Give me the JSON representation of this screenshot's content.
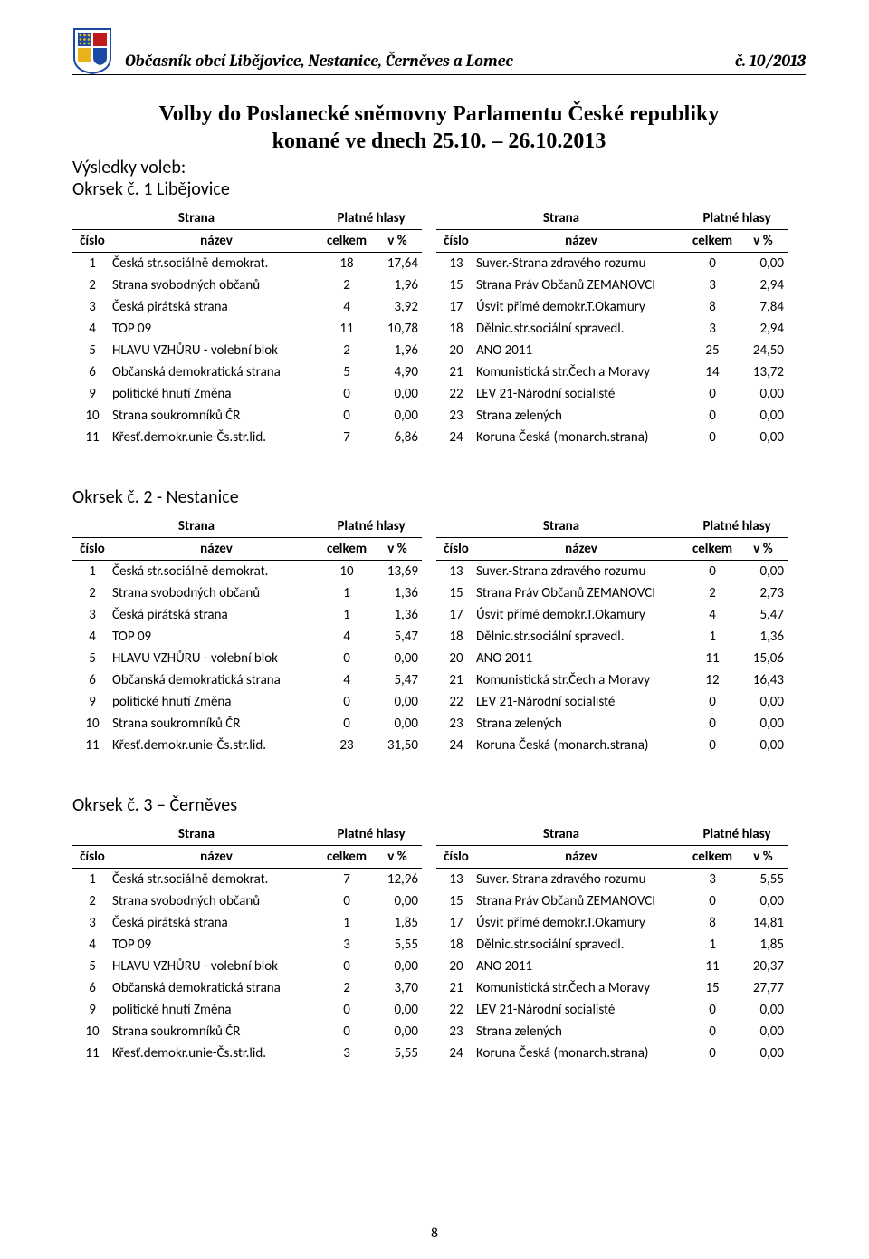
{
  "header": {
    "title": "Občasník obcí Libějovice, Nestanice, Černěves a Lomec",
    "issue": "č. 10/2013"
  },
  "main_title_line1": "Volby do Poslanecké sněmovny Parlamentu České republiky",
  "main_title_line2": "konané ve dnech 25.10. – 26.10.2013",
  "results_label": "Výsledky voleb:",
  "col": {
    "strana": "Strana",
    "hlasy": "Platné hlasy",
    "cislo": "číslo",
    "nazev": "název",
    "celkem": "celkem",
    "vpct": "v %"
  },
  "sections": [
    {
      "heading": "Okrsek č. 1 Libějovice",
      "left": [
        {
          "n": "1",
          "name": "Česká str.sociálně demokrat.",
          "c": "18",
          "p": "17,64"
        },
        {
          "n": "2",
          "name": "Strana svobodných občanů",
          "c": "2",
          "p": "1,96"
        },
        {
          "n": "3",
          "name": "Česká pirátská strana",
          "c": "4",
          "p": "3,92"
        },
        {
          "n": "4",
          "name": "TOP 09",
          "c": "11",
          "p": "10,78"
        },
        {
          "n": "5",
          "name": "HLAVU VZHŮRU - volební blok",
          "c": "2",
          "p": "1,96"
        },
        {
          "n": "6",
          "name": "Občanská demokratická strana",
          "c": "5",
          "p": "4,90"
        },
        {
          "n": "9",
          "name": "politické hnutí Změna",
          "c": "0",
          "p": "0,00"
        },
        {
          "n": "10",
          "name": "Strana soukromníků ČR",
          "c": "0",
          "p": "0,00"
        },
        {
          "n": "11",
          "name": "Křesť.demokr.unie-Čs.str.lid.",
          "c": "7",
          "p": "6,86"
        }
      ],
      "right": [
        {
          "n": "13",
          "name": "Suver.-Strana zdravého rozumu",
          "c": "0",
          "p": "0,00"
        },
        {
          "n": "15",
          "name": "Strana Práv Občanů ZEMANOVCI",
          "c": "3",
          "p": "2,94"
        },
        {
          "n": "17",
          "name": "Úsvit přímé demokr.T.Okamury",
          "c": "8",
          "p": "7,84"
        },
        {
          "n": "18",
          "name": "Dělnic.str.sociální spravedl.",
          "c": "3",
          "p": "2,94"
        },
        {
          "n": "20",
          "name": "ANO 2011",
          "c": "25",
          "p": "24,50"
        },
        {
          "n": "21",
          "name": "Komunistická str.Čech a Moravy",
          "c": "14",
          "p": "13,72"
        },
        {
          "n": "22",
          "name": "LEV 21-Národní socialisté",
          "c": "0",
          "p": "0,00"
        },
        {
          "n": "23",
          "name": "Strana zelených",
          "c": "0",
          "p": "0,00"
        },
        {
          "n": "24",
          "name": "Koruna Česká (monarch.strana)",
          "c": "0",
          "p": "0,00"
        }
      ]
    },
    {
      "heading": "Okrsek č. 2 - Nestanice",
      "left": [
        {
          "n": "1",
          "name": "Česká str.sociálně demokrat.",
          "c": "10",
          "p": "13,69"
        },
        {
          "n": "2",
          "name": "Strana svobodných občanů",
          "c": "1",
          "p": "1,36"
        },
        {
          "n": "3",
          "name": "Česká pirátská strana",
          "c": "1",
          "p": "1,36"
        },
        {
          "n": "4",
          "name": "TOP 09",
          "c": "4",
          "p": "5,47"
        },
        {
          "n": "5",
          "name": "HLAVU VZHŮRU - volební blok",
          "c": "0",
          "p": "0,00"
        },
        {
          "n": "6",
          "name": "Občanská demokratická strana",
          "c": "4",
          "p": "5,47"
        },
        {
          "n": "9",
          "name": "politické hnutí Změna",
          "c": "0",
          "p": "0,00"
        },
        {
          "n": "10",
          "name": "Strana soukromníků ČR",
          "c": "0",
          "p": "0,00"
        },
        {
          "n": "11",
          "name": "Křesť.demokr.unie-Čs.str.lid.",
          "c": "23",
          "p": "31,50"
        }
      ],
      "right": [
        {
          "n": "13",
          "name": "Suver.-Strana zdravého rozumu",
          "c": "0",
          "p": "0,00"
        },
        {
          "n": "15",
          "name": "Strana Práv Občanů ZEMANOVCI",
          "c": "2",
          "p": "2,73"
        },
        {
          "n": "17",
          "name": "Úsvit přímé demokr.T.Okamury",
          "c": "4",
          "p": "5,47"
        },
        {
          "n": "18",
          "name": "Dělnic.str.sociální spravedl.",
          "c": "1",
          "p": "1,36"
        },
        {
          "n": "20",
          "name": "ANO 2011",
          "c": "11",
          "p": "15,06"
        },
        {
          "n": "21",
          "name": "Komunistická str.Čech a Moravy",
          "c": "12",
          "p": "16,43"
        },
        {
          "n": "22",
          "name": "LEV 21-Národní socialisté",
          "c": "0",
          "p": "0,00"
        },
        {
          "n": "23",
          "name": "Strana zelených",
          "c": "0",
          "p": "0,00"
        },
        {
          "n": "24",
          "name": "Koruna Česká (monarch.strana)",
          "c": "0",
          "p": "0,00"
        }
      ]
    },
    {
      "heading": "Okrsek č. 3 – Černěves",
      "left": [
        {
          "n": "1",
          "name": "Česká str.sociálně demokrat.",
          "c": "7",
          "p": "12,96"
        },
        {
          "n": "2",
          "name": "Strana svobodných občanů",
          "c": "0",
          "p": "0,00"
        },
        {
          "n": "3",
          "name": "Česká pirátská strana",
          "c": "1",
          "p": "1,85"
        },
        {
          "n": "4",
          "name": "TOP 09",
          "c": "3",
          "p": "5,55"
        },
        {
          "n": "5",
          "name": "HLAVU VZHŮRU - volební blok",
          "c": "0",
          "p": "0,00"
        },
        {
          "n": "6",
          "name": "Občanská demokratická strana",
          "c": "2",
          "p": "3,70"
        },
        {
          "n": "9",
          "name": "politické hnutí Změna",
          "c": "0",
          "p": "0,00"
        },
        {
          "n": "10",
          "name": "Strana soukromníků ČR",
          "c": "0",
          "p": "0,00"
        },
        {
          "n": "11",
          "name": "Křesť.demokr.unie-Čs.str.lid.",
          "c": "3",
          "p": "5,55"
        }
      ],
      "right": [
        {
          "n": "13",
          "name": "Suver.-Strana zdravého rozumu",
          "c": "3",
          "p": "5,55"
        },
        {
          "n": "15",
          "name": "Strana Práv Občanů ZEMANOVCI",
          "c": "0",
          "p": "0,00"
        },
        {
          "n": "17",
          "name": "Úsvit přímé demokr.T.Okamury",
          "c": "8",
          "p": "14,81"
        },
        {
          "n": "18",
          "name": "Dělnic.str.sociální spravedl.",
          "c": "1",
          "p": "1,85"
        },
        {
          "n": "20",
          "name": "ANO 2011",
          "c": "11",
          "p": "20,37"
        },
        {
          "n": "21",
          "name": "Komunistická str.Čech a Moravy",
          "c": "15",
          "p": "27,77"
        },
        {
          "n": "22",
          "name": "LEV 21-Národní socialisté",
          "c": "0",
          "p": "0,00"
        },
        {
          "n": "23",
          "name": "Strana zelených",
          "c": "0",
          "p": "0,00"
        },
        {
          "n": "24",
          "name": "Koruna Česká (monarch.strana)",
          "c": "0",
          "p": "0,00"
        }
      ]
    }
  ],
  "page_number": "8",
  "crest_colors": {
    "border": "#1a4aa3",
    "blue": "#1a4aa3",
    "red": "#c11a1a",
    "yellow": "#e7b21a",
    "bg": "#ffffff"
  }
}
